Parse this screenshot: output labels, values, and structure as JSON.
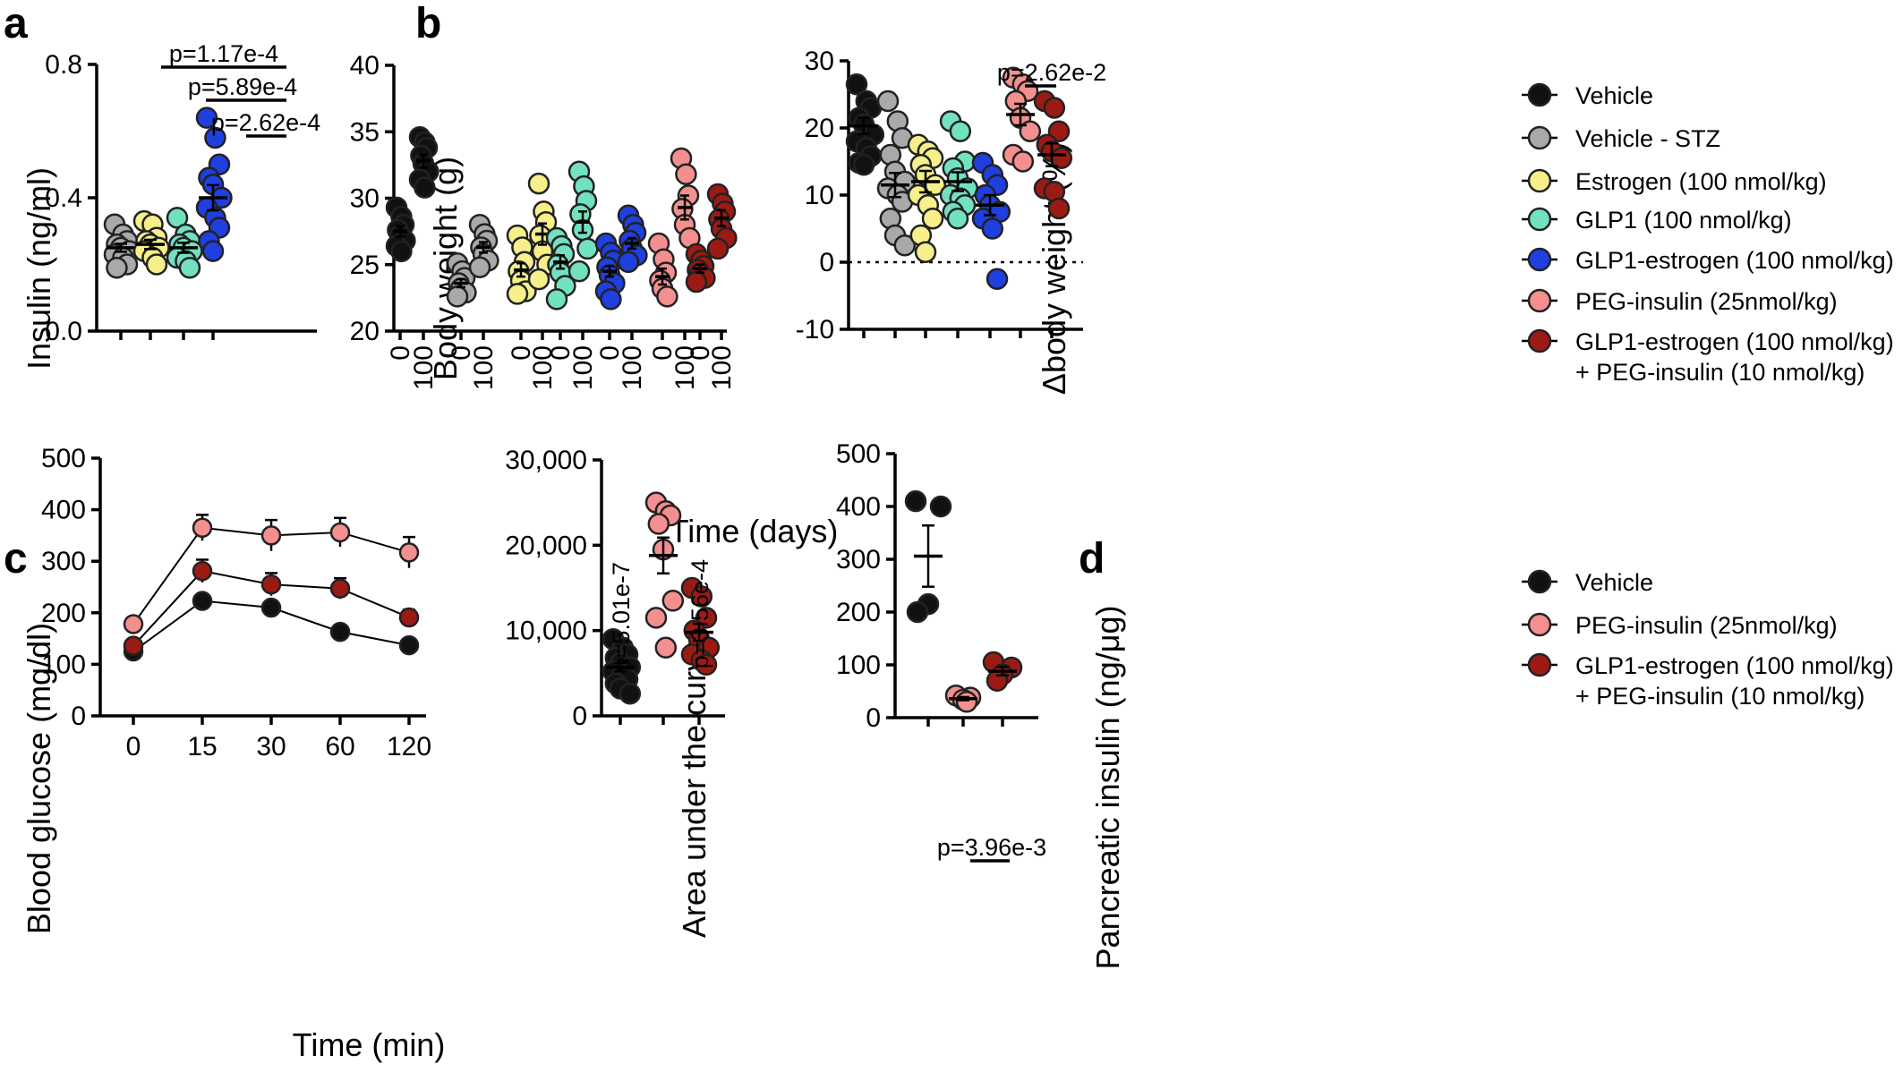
{
  "panel_labels": {
    "a": "a",
    "b": "b",
    "c": "c",
    "d": "d"
  },
  "colors": {
    "Vehicle": "#111111",
    "Vehicle - STZ": "#a9a9a9",
    "Estrogen (100 nmol/kg)": "#f6ef8a",
    "GLP1 (100 nmol/kg)": "#72e1c0",
    "GLP1-estrogen (100 nmol/kg)": "#1f3fe0",
    "PEG-insulin (25nmol/kg)": "#f48f8f",
    "GLP1-estrogen (100 nmol/kg) + PEG-insulin (10 nmol/kg)": "#9c1a14"
  },
  "legend_b": {
    "entries": [
      "Vehicle",
      "Vehicle - STZ",
      "Estrogen (100 nmol/kg)",
      "GLP1 (100 nmol/kg)",
      "GLP1-estrogen (100 nmol/kg)",
      "PEG-insulin (25nmol/kg)",
      "GLP1-estrogen (100 nmol/kg) + PEG-insulin (10 nmol/kg)"
    ],
    "line1": "Vehicle",
    "line2": "Vehicle - STZ",
    "line3": "Estrogen (100 nmol/kg)",
    "line4": "GLP1 (100 nmol/kg)",
    "line5": "GLP1-estrogen (100 nmol/kg)",
    "line6": "PEG-insulin (25nmol/kg)",
    "line7a": "GLP1-estrogen (100 nmol/kg)",
    "line7b": "+ PEG-insulin (10 nmol/kg)"
  },
  "legend_d": {
    "entries": [
      "Vehicle",
      "PEG-insulin (25nmol/kg)",
      "GLP1-estrogen (100 nmol/kg) + PEG-insulin (10 nmol/kg)"
    ],
    "line1": "Vehicle",
    "line2": "PEG-insulin (25nmol/kg)",
    "line3a": "GLP1-estrogen (100 nmol/kg)",
    "line3b": "+ PEG-insulin (10 nmol/kg)"
  },
  "chart_data": [
    {
      "id": "a",
      "type": "scatter",
      "ylabel": "Insulin (ng/ml)",
      "ylim": [
        0,
        0.8
      ],
      "yticks": [
        "0.0",
        "0.4",
        "0.8"
      ],
      "ytick_values": [
        0,
        0.4,
        0.8
      ],
      "groups": [
        {
          "name": "Vehicle - STZ",
          "values": [
            0.32,
            0.29,
            0.27,
            0.26,
            0.25,
            0.24,
            0.23,
            0.22,
            0.2,
            0.19
          ],
          "mean": 0.25,
          "sem": 0.012
        },
        {
          "name": "Estrogen (100 nmol/kg)",
          "values": [
            0.33,
            0.32,
            0.28,
            0.27,
            0.26,
            0.25,
            0.24,
            0.22,
            0.2
          ],
          "mean": 0.26,
          "sem": 0.014
        },
        {
          "name": "GLP1 (100 nmol/kg)",
          "values": [
            0.34,
            0.29,
            0.27,
            0.26,
            0.25,
            0.24,
            0.22,
            0.21,
            0.19
          ],
          "mean": 0.25,
          "sem": 0.015
        },
        {
          "name": "GLP1-estrogen (100 nmol/kg)",
          "values": [
            0.64,
            0.58,
            0.5,
            0.46,
            0.44,
            0.4,
            0.37,
            0.34,
            0.31,
            0.27,
            0.24
          ],
          "mean": 0.4,
          "sem": 0.038
        }
      ],
      "pvalues": [
        {
          "text": "p=1.17e-4",
          "from": 0,
          "to": 3
        },
        {
          "text": "p=5.89e-4",
          "from": 1,
          "to": 3
        },
        {
          "text": "p=2.62e-4",
          "from": 2,
          "to": 3
        }
      ]
    },
    {
      "id": "b1",
      "type": "scatter",
      "ylabel": "Body weight (g)",
      "xlabel": "Time (days)",
      "ylim": [
        20,
        40
      ],
      "yticks": [
        "20",
        "25",
        "30",
        "35",
        "40"
      ],
      "ytick_values": [
        20,
        25,
        30,
        35,
        40
      ],
      "xtick_labels": [
        "0",
        "100"
      ],
      "groups": [
        {
          "name": "Vehicle",
          "day0": [
            29.3,
            28.6,
            28.0,
            27.6,
            27.2,
            26.8,
            26.4,
            26.0
          ],
          "day100": [
            34.6,
            34.2,
            33.8,
            33.2,
            32.6,
            32.0,
            31.4,
            30.8
          ],
          "mean0": 27.5,
          "sem0": 0.4,
          "mean100": 32.8,
          "sem100": 0.5
        },
        {
          "name": "Vehicle - STZ",
          "day0": [
            25.1,
            24.5,
            24.0,
            23.6,
            23.2,
            22.9,
            22.6
          ],
          "day100": [
            28.0,
            27.3,
            26.8,
            26.3,
            25.8,
            25.3,
            24.8
          ],
          "mean0": 23.6,
          "sem0": 0.3,
          "mean100": 26.3,
          "sem100": 0.4
        },
        {
          "name": "Estrogen (100 nmol/kg)",
          "day0": [
            27.2,
            26.3,
            25.2,
            24.5,
            23.8,
            23.0,
            22.8
          ],
          "day100": [
            31.1,
            29.0,
            28.2,
            27.2,
            26.0,
            25.0,
            23.9
          ],
          "mean0": 24.6,
          "sem0": 0.5,
          "mean100": 27.3,
          "sem100": 0.8
        },
        {
          "name": "GLP1 (100 nmol/kg)",
          "day0": [
            27.0,
            26.4,
            25.8,
            25.0,
            24.4,
            23.4,
            22.4
          ],
          "day100": [
            32.0,
            30.9,
            29.8,
            28.8,
            27.6,
            26.2,
            24.5
          ],
          "mean0": 25.2,
          "sem0": 0.5,
          "mean100": 28.2,
          "sem100": 0.8
        },
        {
          "name": "GLP1-estrogen (100 nmol/kg)",
          "day0": [
            26.6,
            25.9,
            25.3,
            24.8,
            24.2,
            23.6,
            23.0,
            22.4
          ],
          "day100": [
            28.7,
            28.0,
            27.4,
            26.8,
            26.2,
            25.7,
            25.2
          ],
          "mean0": 24.5,
          "sem0": 0.4,
          "mean100": 26.6,
          "sem100": 0.4
        },
        {
          "name": "PEG-insulin (25nmol/kg)",
          "day0": [
            26.6,
            25.4,
            24.4,
            23.8,
            23.2,
            22.6
          ],
          "day100": [
            33.0,
            31.8,
            30.2,
            29.2,
            28.0,
            27.0
          ],
          "mean0": 24.1,
          "sem0": 0.6,
          "mean100": 29.3,
          "sem100": 0.9
        },
        {
          "name": "GLP1-estrogen (100 nmol/kg) + PEG-insulin (10 nmol/kg)",
          "day0": [
            25.8,
            25.3,
            24.9,
            24.6,
            24.3,
            24.0,
            23.7
          ],
          "day100": [
            30.3,
            29.6,
            29.0,
            28.4,
            27.7,
            27.0,
            26.2
          ],
          "mean0": 24.7,
          "sem0": 0.3,
          "mean100": 28.5,
          "sem100": 0.6
        }
      ]
    },
    {
      "id": "b2",
      "type": "scatter",
      "ylabel": "Δbody weight (%)",
      "ylim": [
        -10,
        30
      ],
      "yticks": [
        "-10",
        "0",
        "10",
        "20",
        "30"
      ],
      "ytick_values": [
        -10,
        0,
        10,
        20,
        30
      ],
      "groups": [
        {
          "name": "Vehicle",
          "values": [
            26.5,
            24.0,
            23.0,
            21.5,
            20.5,
            19.0,
            18.0,
            17.0,
            15.8,
            14.8,
            14.5
          ],
          "mean": 20.3,
          "sem": 1.2
        },
        {
          "name": "Vehicle - STZ",
          "values": [
            24.0,
            21.0,
            18.5,
            16.0,
            13.5,
            12.0,
            11.0,
            10.0,
            9.0,
            6.5,
            4.0,
            2.5
          ],
          "mean": 11.5,
          "sem": 1.8
        },
        {
          "name": "Estrogen (100 nmol/kg)",
          "values": [
            17.5,
            16.5,
            15.5,
            14.5,
            13.0,
            11.5,
            10.0,
            8.5,
            6.5,
            4.0,
            1.5
          ],
          "mean": 12.0,
          "sem": 1.6
        },
        {
          "name": "GLP1 (100 nmol/kg)",
          "values": [
            21.0,
            19.5,
            15.0,
            14.0,
            12.5,
            11.0,
            10.0,
            9.5,
            8.5,
            7.5,
            6.5
          ],
          "mean": 12.0,
          "sem": 1.4
        },
        {
          "name": "GLP1-estrogen (100 nmol/kg)",
          "values": [
            14.8,
            13.0,
            11.5,
            10.0,
            8.5,
            7.5,
            6.5,
            5.0,
            -2.5
          ],
          "mean": 8.5,
          "sem": 1.5
        },
        {
          "name": "PEG-insulin (25nmol/kg)",
          "values": [
            27.5,
            26.5,
            25.5,
            24.0,
            21.5,
            19.5,
            16.0,
            15.0
          ],
          "mean": 22.0,
          "sem": 1.6
        },
        {
          "name": "GLP1-estrogen (100 nmol/kg) + PEG-insulin (10 nmol/kg)",
          "values": [
            24.0,
            23.0,
            19.5,
            17.5,
            16.5,
            15.5,
            11.0,
            10.5,
            8.0
          ],
          "mean": 16.0,
          "sem": 1.7
        }
      ],
      "pvalues": [
        {
          "text": "p=2.62e-2",
          "from": 5,
          "to": 6
        }
      ]
    },
    {
      "id": "c1",
      "type": "line",
      "ylabel": "Blood glucose (mg/dl)",
      "xlabel": "Time (min)",
      "ylim": [
        0,
        500
      ],
      "yticks": [
        "0",
        "100",
        "200",
        "300",
        "400",
        "500"
      ],
      "ytick_values": [
        0,
        100,
        200,
        300,
        400,
        500
      ],
      "categories": [
        "0",
        "15",
        "30",
        "60",
        "120"
      ],
      "series": [
        {
          "name": "Vehicle",
          "values": [
            125,
            223,
            210,
            163,
            137
          ],
          "err": [
            5,
            8,
            8,
            7,
            6
          ]
        },
        {
          "name": "PEG-insulin (25nmol/kg)",
          "values": [
            178,
            365,
            350,
            356,
            317
          ],
          "err": [
            8,
            25,
            30,
            28,
            30
          ]
        },
        {
          "name": "GLP1-estrogen (100 nmol/kg) + PEG-insulin (10 nmol/kg)",
          "values": [
            136,
            281,
            255,
            247,
            191
          ],
          "err": [
            6,
            22,
            22,
            20,
            15
          ]
        }
      ]
    },
    {
      "id": "c2",
      "type": "scatter",
      "ylabel": "Area under the curve",
      "ylim": [
        0,
        30000
      ],
      "yticks": [
        "0",
        "10,000",
        "20,000",
        "30,000"
      ],
      "ytick_values": [
        0,
        10000,
        20000,
        30000
      ],
      "groups": [
        {
          "name": "Vehicle",
          "values": [
            9000,
            8000,
            7200,
            6800,
            6200,
            5700,
            5200,
            4800,
            4300,
            3800,
            3200,
            2600
          ],
          "mean": 5700,
          "sem": 500
        },
        {
          "name": "PEG-insulin (25nmol/kg)",
          "values": [
            25000,
            24000,
            23500,
            22500,
            19500,
            13500,
            11500,
            8000
          ],
          "mean": 18800,
          "sem": 2100
        },
        {
          "name": "GLP1-estrogen (100 nmol/kg) + PEG-insulin (10 nmol/kg)",
          "values": [
            15000,
            14000,
            11500,
            10000,
            9000,
            8000,
            7200,
            6500,
            6000
          ],
          "mean": 9800,
          "sem": 1000
        }
      ],
      "pvalues": [
        {
          "text": "p=5.01e-7",
          "group": 0
        },
        {
          "text": "p=3.56e-4",
          "group": 2
        }
      ]
    },
    {
      "id": "d",
      "type": "scatter",
      "ylabel": "Pancreatic insulin (ng/μg)",
      "ylim": [
        0,
        500
      ],
      "yticks": [
        "0",
        "100",
        "200",
        "300",
        "400",
        "500"
      ],
      "ytick_values": [
        0,
        100,
        200,
        300,
        400,
        500
      ],
      "groups": [
        {
          "name": "Vehicle",
          "values": [
            410,
            400,
            215,
            200
          ],
          "mean": 306,
          "sem": 58
        },
        {
          "name": "PEG-insulin (25nmol/kg)",
          "values": [
            42,
            38,
            34,
            30
          ],
          "mean": 36,
          "sem": 3
        },
        {
          "name": "GLP1-estrogen (100 nmol/kg) + PEG-insulin (10 nmol/kg)",
          "values": [
            105,
            95,
            82,
            70
          ],
          "mean": 88,
          "sem": 8
        }
      ],
      "pvalues": [
        {
          "text": "p=3.96e-3",
          "from": 1,
          "to": 2
        }
      ]
    }
  ]
}
